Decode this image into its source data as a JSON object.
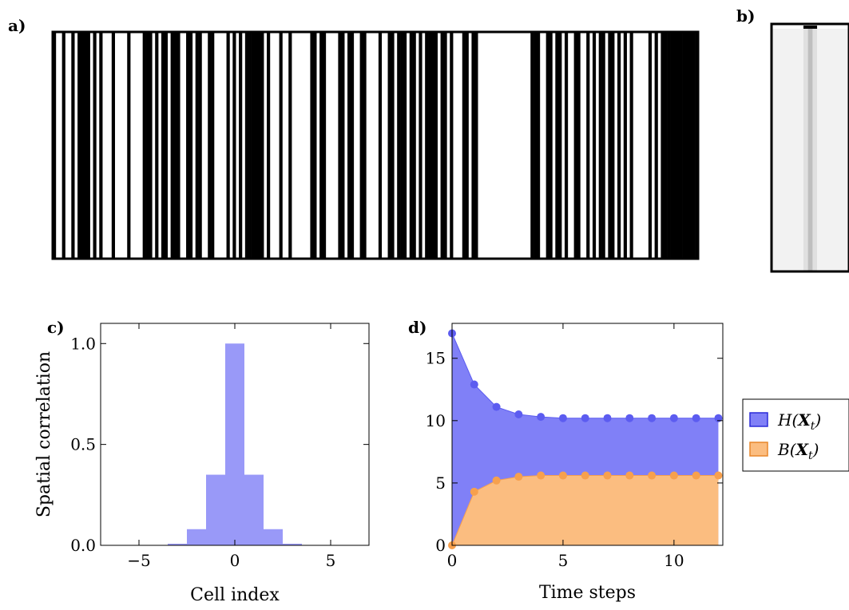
{
  "panels": {
    "a": {
      "label": "a)"
    },
    "b": {
      "label": "b)"
    },
    "c": {
      "label": "c)"
    },
    "d": {
      "label": "d)"
    }
  },
  "colors": {
    "bar_fill": "#9999f8",
    "h_series": "#5c5cf0",
    "h_fill": "#8080f7",
    "b_series": "#f7a04d",
    "b_fill": "#fbbd80",
    "ink": "#000000"
  },
  "chart_data": [
    {
      "panel": "a",
      "type": "heatmap",
      "cells": "1001001011110101000100001000011101011011100110110011000010101011111101000100100000011011000011011001100001001101110110101111011010001101100000000000000000111001101101001100101011011010101000001010111111111111"
    },
    {
      "panel": "b",
      "type": "heatmap",
      "columns": [
        0.05,
        0.05,
        0.05,
        0.05,
        0.05,
        0.05,
        0.05,
        0.12,
        0.25,
        0.12,
        0.05,
        0.05,
        0.05,
        0.05,
        0.05,
        0.05,
        0.05
      ]
    },
    {
      "panel": "c",
      "type": "bar",
      "xlabel": "Cell index",
      "ylabel": "Spatial correlation",
      "x": [
        -6,
        -5,
        -4,
        -3,
        -2,
        -1,
        0,
        1,
        2,
        3,
        4,
        5,
        6
      ],
      "values": [
        0.0,
        0.0,
        0.0,
        0.008,
        0.08,
        0.35,
        1.0,
        0.35,
        0.08,
        0.008,
        0.0,
        0.0,
        0.0
      ],
      "xlim": [
        -7,
        7
      ],
      "ylim": [
        0,
        1.1
      ],
      "xticks": [
        "−5",
        "0",
        "5"
      ],
      "yticks": [
        "0.0",
        "0.5",
        "1.0"
      ]
    },
    {
      "panel": "d",
      "type": "area",
      "xlabel": "Time steps",
      "x": [
        0,
        1,
        2,
        3,
        4,
        5,
        6,
        7,
        8,
        9,
        10,
        11,
        12
      ],
      "series": [
        {
          "name": "H(X_t)",
          "legend_fn": "H",
          "values": [
            17.0,
            12.9,
            11.1,
            10.5,
            10.3,
            10.2,
            10.2,
            10.2,
            10.2,
            10.2,
            10.2,
            10.2,
            10.2
          ]
        },
        {
          "name": "B(X_t)",
          "legend_fn": "B",
          "values": [
            0.0,
            4.3,
            5.2,
            5.5,
            5.6,
            5.6,
            5.6,
            5.6,
            5.6,
            5.6,
            5.6,
            5.6,
            5.6
          ]
        }
      ],
      "xlim": [
        0,
        12.2
      ],
      "ylim": [
        0,
        17.8
      ],
      "xticks": [
        "0",
        "5",
        "10"
      ],
      "yticks": [
        "0",
        "5",
        "10",
        "15"
      ],
      "legend_position": "right"
    }
  ]
}
